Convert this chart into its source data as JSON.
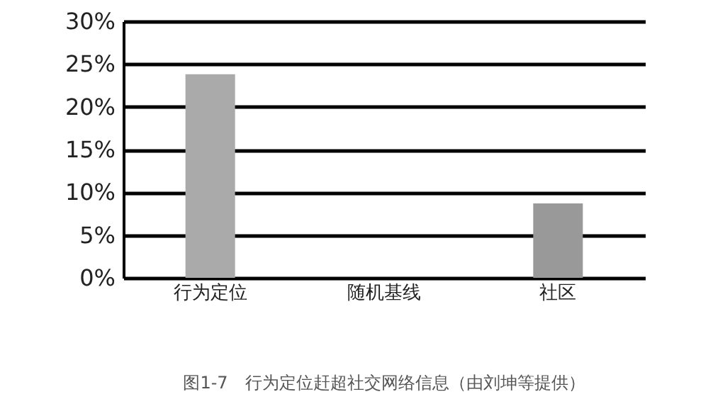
{
  "chart_data": {
    "type": "bar",
    "title": "图1-7　行为定位赶超社交网络信息（由刘坤等提供）",
    "categories": [
      "行为定位",
      "随机基线",
      "社区"
    ],
    "values": [
      23.8,
      0,
      8.7
    ],
    "colors": [
      "#aaaaaa",
      "#999999",
      "#999999"
    ],
    "ylim": [
      0,
      30
    ],
    "yticks": [
      {
        "value": 0,
        "label": "0%"
      },
      {
        "value": 5,
        "label": "5%"
      },
      {
        "value": 10,
        "label": "10%"
      },
      {
        "value": 15,
        "label": "15%"
      },
      {
        "value": 20,
        "label": "20%"
      },
      {
        "value": 25,
        "label": "25%"
      },
      {
        "value": 30,
        "label": "30%"
      }
    ],
    "grid": "y"
  }
}
